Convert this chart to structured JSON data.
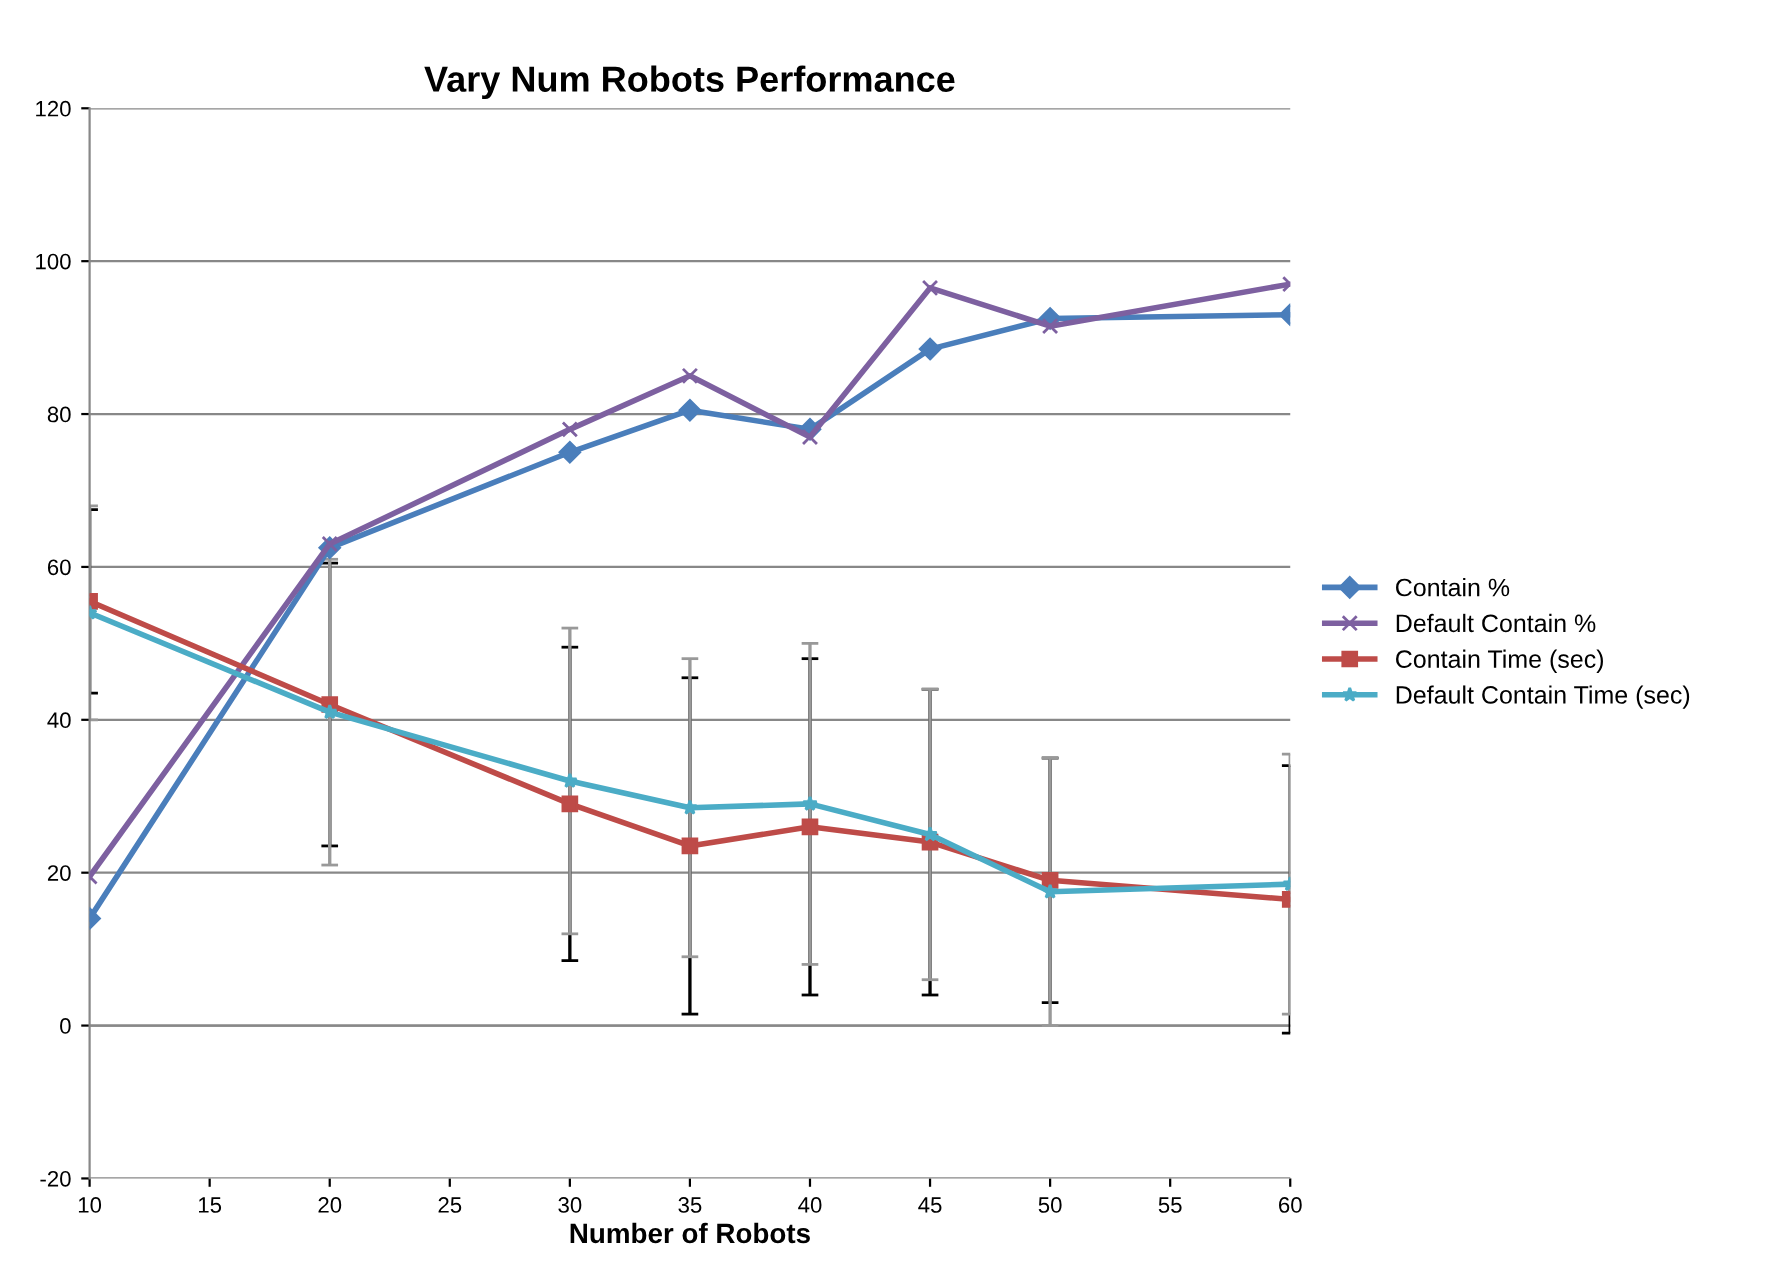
{
  "chart_data": {
    "type": "line",
    "title": "Vary Num Robots Performance",
    "xlabel": "Number of Robots",
    "x": [
      10,
      20,
      30,
      35,
      40,
      45,
      50,
      60
    ],
    "series": [
      {
        "name": "Contain %",
        "color": "#4a7ebb",
        "marker": "diamond",
        "values": [
          14,
          62.5,
          75,
          80.5,
          78,
          88.5,
          92.5,
          93
        ]
      },
      {
        "name": "Default Contain %",
        "color": "#7d60a0",
        "marker": "cross",
        "values": [
          19.5,
          63,
          78,
          85,
          77,
          96.5,
          91.5,
          97
        ]
      },
      {
        "name": "Contain Time (sec)",
        "color": "#be4b48",
        "marker": "square",
        "values": [
          55.5,
          42,
          29,
          23.5,
          26,
          24,
          19,
          16.5
        ],
        "errors": [
          12,
          18.5,
          20.5,
          22,
          22,
          20,
          16,
          17.5
        ]
      },
      {
        "name": "Default Contain Time (sec)",
        "color": "#4bacc6",
        "marker": "star",
        "values": [
          54,
          41,
          32,
          28.5,
          29,
          25,
          17.5,
          18.5
        ],
        "errors": [
          14,
          20,
          20,
          19.5,
          21,
          19,
          17.5,
          17
        ]
      }
    ],
    "xlim": [
      10,
      60
    ],
    "xticks": [
      10,
      15,
      20,
      25,
      30,
      35,
      40,
      45,
      50,
      55,
      60
    ],
    "ylim": [
      -20,
      120
    ],
    "yticks": [
      -20,
      0,
      20,
      40,
      60,
      80,
      100,
      120
    ],
    "grid": "y",
    "legend": "right"
  }
}
